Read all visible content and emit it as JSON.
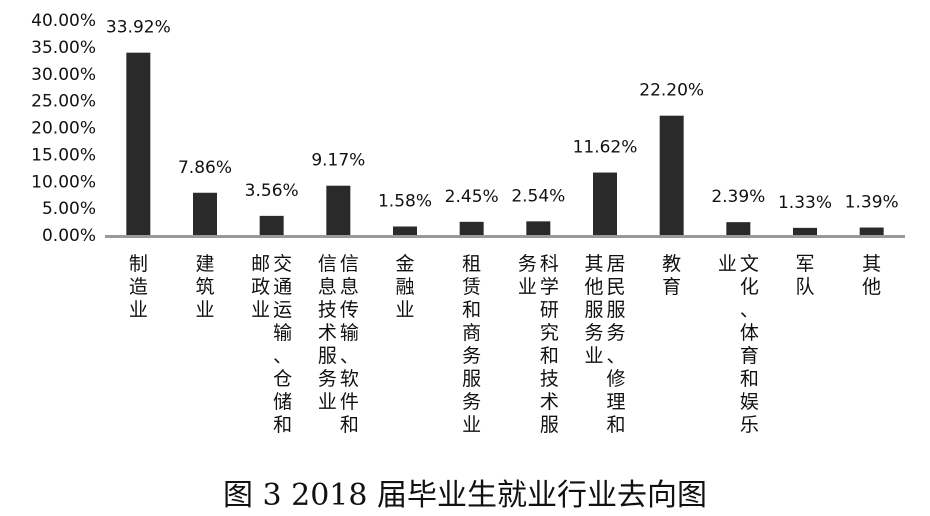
{
  "chart_data": {
    "type": "bar",
    "title": "",
    "xlabel": "",
    "ylabel": "",
    "categories": [
      "制造业",
      "建筑业",
      "交通运输、仓储和邮政业",
      "信息传输、软件和信息技术服务业",
      "金融业",
      "租赁和商务服务业",
      "科学研究和技术服务业",
      "居民服务、修理和其他服务业",
      "教育",
      "文化、体育和娱乐业",
      "军队",
      "其他"
    ],
    "values": [
      33.92,
      7.86,
      3.56,
      9.17,
      1.58,
      2.45,
      2.54,
      11.62,
      22.2,
      2.39,
      1.33,
      1.39
    ],
    "data_labels": [
      "33.92%",
      "7.86%",
      "3.56%",
      "9.17%",
      "1.58%",
      "2.45%",
      "2.54%",
      "11.62%",
      "22.20%",
      "2.39%",
      "1.33%",
      "1.39%"
    ],
    "yticks": [
      "0.00%",
      "5.00%",
      "10.00%",
      "15.00%",
      "20.00%",
      "25.00%",
      "30.00%",
      "35.00%",
      "40.00%"
    ],
    "ylim": [
      0,
      40
    ],
    "grid": false,
    "bar_color": "#2a2a2a",
    "axis_color": "#999999"
  },
  "caption": "图 3 2018 届毕业生就业行业去向图"
}
